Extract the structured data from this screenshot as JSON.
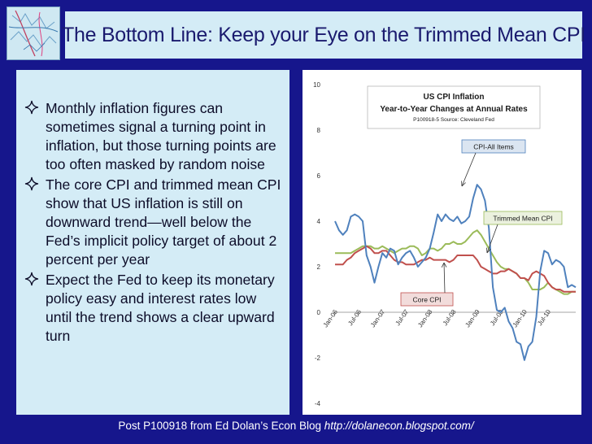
{
  "title": "The Bottom Line: Keep your Eye on the Trimmed Mean CPI",
  "bullets": [
    "Monthly inflation figures can sometimes signal a turning point in inflation, but those turning points are too often masked by random noise",
    "The core CPI and trimmed mean CPI show that US inflation is still on downward trend—well below the Fed’s implicit policy target of about 2 percent per year",
    "Expect the Fed to keep its monetary policy easy and interest rates low until the trend shows a clear upward turn"
  ],
  "footer": {
    "text": "Post P100918 from Ed Dolan’s Econ Blog ",
    "url": "http://dolanecon.blogspot.com/"
  },
  "colors": {
    "background": "#16168c",
    "panel": "#d4ecf6",
    "cpi_all": "#4f81bd",
    "core": "#c0504d",
    "trimmed": "#9bbb59"
  },
  "chart_data": {
    "type": "line",
    "title": "US CPI Inflation",
    "subtitle": "Year-to-Year Changes at Annual Rates",
    "source": "P100918-5 Source: Cleveland Fed",
    "ylim": [
      -4,
      10
    ],
    "yticks": [
      "10",
      "8",
      "6",
      "4",
      "2",
      "0",
      "-2",
      "-4"
    ],
    "x_labels": [
      "Jan-06",
      "Jul-06",
      "Jan-07",
      "Jul-07",
      "Jan-08",
      "Jul-08",
      "Jan-09",
      "Jul-09",
      "Jan-10",
      "Jul-10"
    ],
    "grid": false,
    "series": [
      {
        "name": "CPI-All Items",
        "key": "cpi_all",
        "values": [
          4.0,
          3.6,
          3.4,
          3.6,
          4.2,
          4.3,
          4.2,
          4.0,
          2.5,
          2.0,
          1.3,
          2.0,
          2.6,
          2.4,
          2.8,
          2.7,
          2.1,
          2.4,
          2.6,
          2.7,
          2.4,
          2.0,
          2.2,
          2.4,
          2.8,
          3.5,
          4.3,
          4.0,
          4.3,
          4.1,
          4.0,
          4.2,
          3.9,
          4.0,
          4.2,
          5.0,
          5.6,
          5.4,
          4.9,
          3.7,
          1.1,
          0.1,
          0.0,
          0.2,
          -0.4,
          -0.7,
          -1.3,
          -1.4,
          -2.1,
          -1.5,
          -1.3,
          -0.2,
          1.8,
          2.7,
          2.6,
          2.1,
          2.3,
          2.2,
          2.0,
          1.1,
          1.2,
          1.1
        ]
      },
      {
        "name": "Core CPI",
        "key": "core",
        "values": [
          2.1,
          2.1,
          2.1,
          2.3,
          2.4,
          2.6,
          2.7,
          2.8,
          2.9,
          2.8,
          2.6,
          2.6,
          2.7,
          2.7,
          2.5,
          2.3,
          2.2,
          2.2,
          2.1,
          2.1,
          2.1,
          2.2,
          2.3,
          2.3,
          2.4,
          2.3,
          2.3,
          2.3,
          2.3,
          2.2,
          2.3,
          2.5,
          2.5,
          2.5,
          2.5,
          2.5,
          2.3,
          2.0,
          1.9,
          1.8,
          1.7,
          1.7,
          1.8,
          1.8,
          1.9,
          1.8,
          1.7,
          1.5,
          1.5,
          1.4,
          1.7,
          1.8,
          1.7,
          1.6,
          1.3,
          1.1,
          1.0,
          1.0,
          0.9,
          0.9,
          0.9,
          0.9
        ]
      },
      {
        "name": "Trimmed Mean CPI",
        "key": "trimmed",
        "values": [
          2.6,
          2.6,
          2.6,
          2.6,
          2.6,
          2.7,
          2.8,
          2.9,
          2.9,
          2.9,
          2.8,
          2.8,
          2.9,
          2.8,
          2.7,
          2.6,
          2.7,
          2.8,
          2.8,
          2.9,
          2.9,
          2.8,
          2.5,
          2.6,
          2.8,
          2.8,
          2.7,
          2.8,
          3.0,
          3.0,
          3.1,
          3.0,
          3.0,
          3.1,
          3.3,
          3.5,
          3.6,
          3.4,
          3.1,
          2.8,
          2.5,
          2.2,
          2.0,
          1.9,
          1.9,
          1.8,
          1.7,
          1.5,
          1.5,
          1.3,
          1.0,
          1.0,
          1.0,
          1.1,
          1.3,
          1.1,
          1.0,
          0.9,
          0.8,
          0.8,
          0.9,
          0.9
        ]
      }
    ],
    "callouts": [
      {
        "series": "CPI-All Items",
        "label": "CPI-All Items"
      },
      {
        "series": "Trimmed Mean CPI",
        "label": "Trimmed Mean CPI"
      },
      {
        "series": "Core CPI",
        "label": "Core CPI"
      }
    ]
  }
}
